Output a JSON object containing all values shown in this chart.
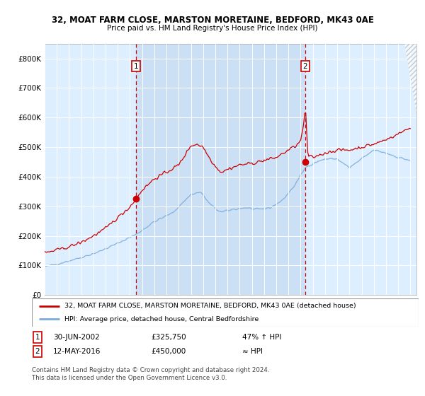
{
  "title1": "32, MOAT FARM CLOSE, MARSTON MORETAINE, BEDFORD, MK43 0AE",
  "title2": "Price paid vs. HM Land Registry's House Price Index (HPI)",
  "legend_line1": "32, MOAT FARM CLOSE, MARSTON MORETAINE, BEDFORD, MK43 0AE (detached house)",
  "legend_line2": "HPI: Average price, detached house, Central Bedfordshire",
  "annotation1_date": "30-JUN-2002",
  "annotation1_price": "£325,750",
  "annotation1_note": "47% ↑ HPI",
  "annotation2_date": "12-MAY-2016",
  "annotation2_price": "£450,000",
  "annotation2_note": "≈ HPI",
  "footer": "Contains HM Land Registry data © Crown copyright and database right 2024.\nThis data is licensed under the Open Government Licence v3.0.",
  "red_color": "#cc0000",
  "blue_color": "#7aabdb",
  "bg_color": "#ddeeff",
  "shade_color": "#cce0f5",
  "white": "#ffffff",
  "marker1_x_year": 2002.5,
  "marker1_y": 325750,
  "marker2_x_year": 2016.37,
  "marker2_y": 450000,
  "vline1_x": 2002.5,
  "vline2_x": 2016.37,
  "ylim_min": 0,
  "ylim_max": 850000,
  "xlim_start": 1995.0,
  "xlim_end": 2025.5,
  "yticks": [
    0,
    100000,
    200000,
    300000,
    400000,
    500000,
    600000,
    700000,
    800000
  ],
  "ytick_labels": [
    "£0",
    "£100K",
    "£200K",
    "£300K",
    "£400K",
    "£500K",
    "£600K",
    "£700K",
    "£800K"
  ],
  "xticks": [
    1995,
    1996,
    1997,
    1998,
    1999,
    2000,
    2001,
    2002,
    2003,
    2004,
    2005,
    2006,
    2007,
    2008,
    2009,
    2010,
    2011,
    2012,
    2013,
    2014,
    2015,
    2016,
    2017,
    2018,
    2019,
    2020,
    2021,
    2022,
    2023,
    2024,
    2025
  ]
}
